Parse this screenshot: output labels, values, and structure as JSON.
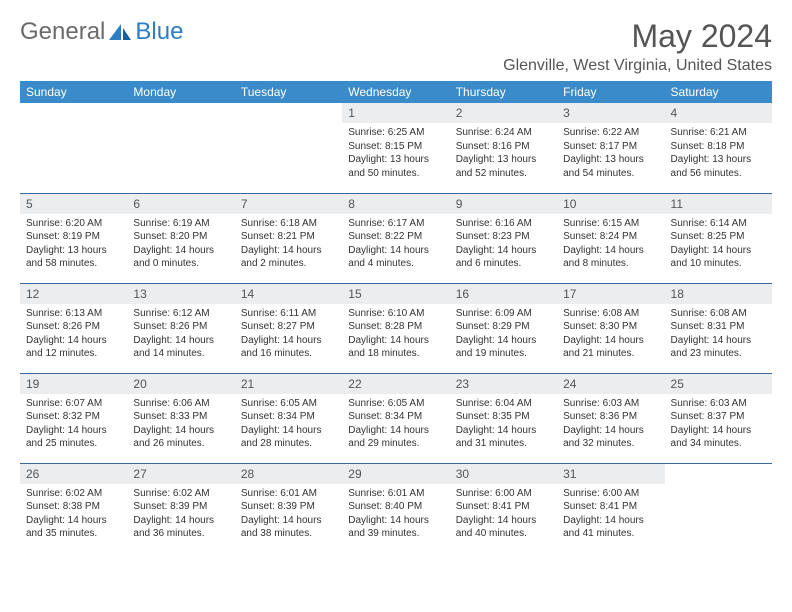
{
  "brand": {
    "part1": "General",
    "part2": "Blue"
  },
  "title": "May 2024",
  "location": "Glenville, West Virginia, United States",
  "header_color": "#3a8bc9",
  "row_border_color": "#3a6a9a",
  "shade_color": "#ecedef",
  "weekdays": [
    "Sunday",
    "Monday",
    "Tuesday",
    "Wednesday",
    "Thursday",
    "Friday",
    "Saturday"
  ],
  "first_weekday_index": 3,
  "days": [
    {
      "n": 1,
      "sunrise": "6:25 AM",
      "sunset": "8:15 PM",
      "daylight": "13 hours and 50 minutes."
    },
    {
      "n": 2,
      "sunrise": "6:24 AM",
      "sunset": "8:16 PM",
      "daylight": "13 hours and 52 minutes."
    },
    {
      "n": 3,
      "sunrise": "6:22 AM",
      "sunset": "8:17 PM",
      "daylight": "13 hours and 54 minutes."
    },
    {
      "n": 4,
      "sunrise": "6:21 AM",
      "sunset": "8:18 PM",
      "daylight": "13 hours and 56 minutes."
    },
    {
      "n": 5,
      "sunrise": "6:20 AM",
      "sunset": "8:19 PM",
      "daylight": "13 hours and 58 minutes."
    },
    {
      "n": 6,
      "sunrise": "6:19 AM",
      "sunset": "8:20 PM",
      "daylight": "14 hours and 0 minutes."
    },
    {
      "n": 7,
      "sunrise": "6:18 AM",
      "sunset": "8:21 PM",
      "daylight": "14 hours and 2 minutes."
    },
    {
      "n": 8,
      "sunrise": "6:17 AM",
      "sunset": "8:22 PM",
      "daylight": "14 hours and 4 minutes."
    },
    {
      "n": 9,
      "sunrise": "6:16 AM",
      "sunset": "8:23 PM",
      "daylight": "14 hours and 6 minutes."
    },
    {
      "n": 10,
      "sunrise": "6:15 AM",
      "sunset": "8:24 PM",
      "daylight": "14 hours and 8 minutes."
    },
    {
      "n": 11,
      "sunrise": "6:14 AM",
      "sunset": "8:25 PM",
      "daylight": "14 hours and 10 minutes."
    },
    {
      "n": 12,
      "sunrise": "6:13 AM",
      "sunset": "8:26 PM",
      "daylight": "14 hours and 12 minutes."
    },
    {
      "n": 13,
      "sunrise": "6:12 AM",
      "sunset": "8:26 PM",
      "daylight": "14 hours and 14 minutes."
    },
    {
      "n": 14,
      "sunrise": "6:11 AM",
      "sunset": "8:27 PM",
      "daylight": "14 hours and 16 minutes."
    },
    {
      "n": 15,
      "sunrise": "6:10 AM",
      "sunset": "8:28 PM",
      "daylight": "14 hours and 18 minutes."
    },
    {
      "n": 16,
      "sunrise": "6:09 AM",
      "sunset": "8:29 PM",
      "daylight": "14 hours and 19 minutes."
    },
    {
      "n": 17,
      "sunrise": "6:08 AM",
      "sunset": "8:30 PM",
      "daylight": "14 hours and 21 minutes."
    },
    {
      "n": 18,
      "sunrise": "6:08 AM",
      "sunset": "8:31 PM",
      "daylight": "14 hours and 23 minutes."
    },
    {
      "n": 19,
      "sunrise": "6:07 AM",
      "sunset": "8:32 PM",
      "daylight": "14 hours and 25 minutes."
    },
    {
      "n": 20,
      "sunrise": "6:06 AM",
      "sunset": "8:33 PM",
      "daylight": "14 hours and 26 minutes."
    },
    {
      "n": 21,
      "sunrise": "6:05 AM",
      "sunset": "8:34 PM",
      "daylight": "14 hours and 28 minutes."
    },
    {
      "n": 22,
      "sunrise": "6:05 AM",
      "sunset": "8:34 PM",
      "daylight": "14 hours and 29 minutes."
    },
    {
      "n": 23,
      "sunrise": "6:04 AM",
      "sunset": "8:35 PM",
      "daylight": "14 hours and 31 minutes."
    },
    {
      "n": 24,
      "sunrise": "6:03 AM",
      "sunset": "8:36 PM",
      "daylight": "14 hours and 32 minutes."
    },
    {
      "n": 25,
      "sunrise": "6:03 AM",
      "sunset": "8:37 PM",
      "daylight": "14 hours and 34 minutes."
    },
    {
      "n": 26,
      "sunrise": "6:02 AM",
      "sunset": "8:38 PM",
      "daylight": "14 hours and 35 minutes."
    },
    {
      "n": 27,
      "sunrise": "6:02 AM",
      "sunset": "8:39 PM",
      "daylight": "14 hours and 36 minutes."
    },
    {
      "n": 28,
      "sunrise": "6:01 AM",
      "sunset": "8:39 PM",
      "daylight": "14 hours and 38 minutes."
    },
    {
      "n": 29,
      "sunrise": "6:01 AM",
      "sunset": "8:40 PM",
      "daylight": "14 hours and 39 minutes."
    },
    {
      "n": 30,
      "sunrise": "6:00 AM",
      "sunset": "8:41 PM",
      "daylight": "14 hours and 40 minutes."
    },
    {
      "n": 31,
      "sunrise": "6:00 AM",
      "sunset": "8:41 PM",
      "daylight": "14 hours and 41 minutes."
    }
  ],
  "labels": {
    "sunrise": "Sunrise:",
    "sunset": "Sunset:",
    "daylight": "Daylight:"
  }
}
